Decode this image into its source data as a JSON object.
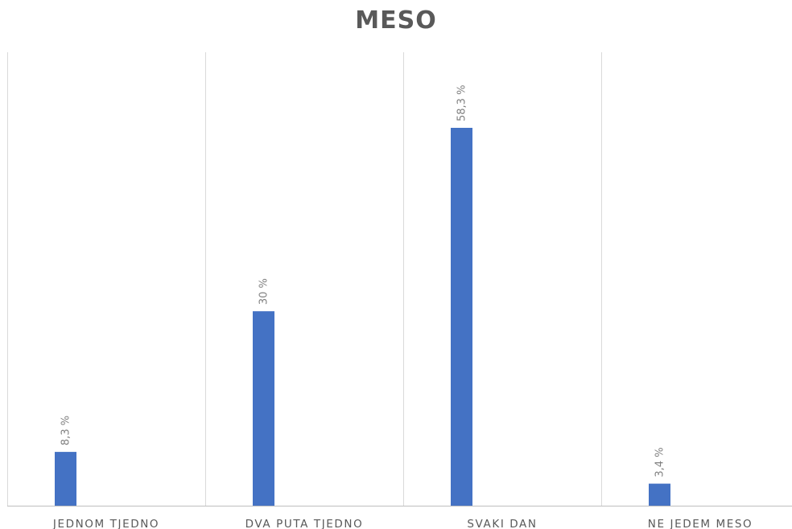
{
  "chart_data": {
    "type": "bar",
    "title": "MESO",
    "categories": [
      "JEDNOM TJEDNO",
      "DVA PUTA TJEDNO",
      "SVAKI DAN",
      "NE JEDEM MESO"
    ],
    "values": [
      8.3,
      30,
      58.3,
      3.4
    ],
    "data_labels": [
      "8,3 %",
      "30 %",
      "58,3 %",
      "3,4 %"
    ],
    "xlabel": "",
    "ylabel": "",
    "ylim": [
      0,
      70
    ],
    "grid": "vertical category separators",
    "legend": "none",
    "bar_color": "#4472C4",
    "gridline_color": "#d9d9d9",
    "axis_color": "#bfbfbf"
  }
}
